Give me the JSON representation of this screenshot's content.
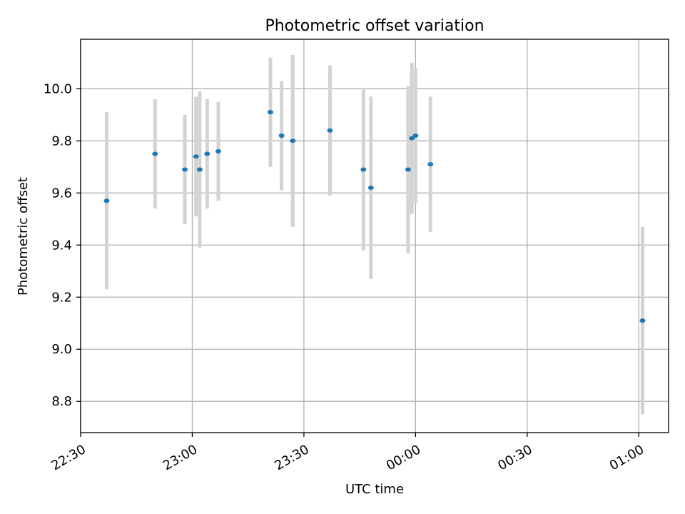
{
  "chart_data": {
    "type": "scatter",
    "title": "Photometric offset variation",
    "xlabel": "UTC time",
    "ylabel": "Photometric offset",
    "xlim": [
      "22:30",
      "01:08"
    ],
    "ylim": [
      8.68,
      10.19
    ],
    "x_ticks": [
      "22:30",
      "23:00",
      "23:30",
      "00:00",
      "00:30",
      "01:00"
    ],
    "y_ticks": [
      "8.8",
      "9.0",
      "9.2",
      "9.4",
      "9.6",
      "9.8",
      "10.0"
    ],
    "grid": true,
    "colors": {
      "point": "#1f77b4",
      "errorbar": "#d3d3d3",
      "grid": "#b0b0b0"
    },
    "points": [
      {
        "x": "22:37",
        "y": 9.57,
        "err": 0.34
      },
      {
        "x": "22:50",
        "y": 9.75,
        "err": 0.21
      },
      {
        "x": "22:58",
        "y": 9.69,
        "err": 0.21
      },
      {
        "x": "23:01",
        "y": 9.74,
        "err": 0.23
      },
      {
        "x": "23:02",
        "y": 9.69,
        "err": 0.3
      },
      {
        "x": "23:04",
        "y": 9.75,
        "err": 0.21
      },
      {
        "x": "23:07",
        "y": 9.76,
        "err": 0.19
      },
      {
        "x": "23:21",
        "y": 9.91,
        "err": 0.21
      },
      {
        "x": "23:21",
        "y": 9.91,
        "err": 0.21
      },
      {
        "x": "23:24",
        "y": 9.82,
        "err": 0.21
      },
      {
        "x": "23:27",
        "y": 9.8,
        "err": 0.33
      },
      {
        "x": "23:37",
        "y": 9.84,
        "err": 0.25
      },
      {
        "x": "23:46",
        "y": 9.69,
        "err": 0.31
      },
      {
        "x": "23:48",
        "y": 9.62,
        "err": 0.35
      },
      {
        "x": "23:58",
        "y": 9.69,
        "err": 0.32
      },
      {
        "x": "23:59",
        "y": 9.81,
        "err": 0.29
      },
      {
        "x": "00:00",
        "y": 9.82,
        "err": 0.26
      },
      {
        "x": "00:04",
        "y": 9.71,
        "err": 0.26
      },
      {
        "x": "01:01",
        "y": 9.11,
        "err": 0.36
      }
    ]
  }
}
